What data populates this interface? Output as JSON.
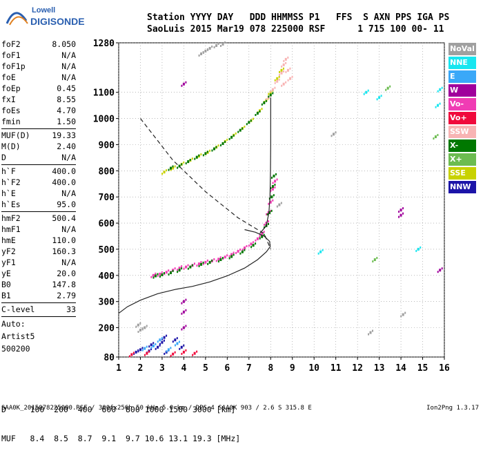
{
  "logo": {
    "line1": "Lowell",
    "line2": "DIGISONDE",
    "color": "#2a5fb0"
  },
  "header": {
    "line1": "Station YYYY DAY   DDD HHMMSS P1   FFS  S AXN PPS IGA PS",
    "line2": "SaoLuis 2015 Mar19 078 225000 RSF      1 715 100 00- 11"
  },
  "params": [
    {
      "name": "foF2",
      "value": "8.050"
    },
    {
      "name": "foF1",
      "value": "N/A"
    },
    {
      "name": "foF1p",
      "value": "N/A"
    },
    {
      "name": "foE",
      "value": "N/A"
    },
    {
      "name": "foEp",
      "value": "0.45"
    },
    {
      "name": "fxI",
      "value": "8.55"
    },
    {
      "name": "foEs",
      "value": "4.70"
    },
    {
      "name": "fmin",
      "value": "1.50"
    },
    {
      "sep": true
    },
    {
      "name": "MUF(D)",
      "value": "19.33"
    },
    {
      "name": "M(D)",
      "value": "2.40"
    },
    {
      "name": "D",
      "value": "N/A"
    },
    {
      "sep": true
    },
    {
      "name": "h`F",
      "value": "400.0"
    },
    {
      "name": "h`F2",
      "value": "400.0"
    },
    {
      "name": "h`E",
      "value": "N/A"
    },
    {
      "name": "h`Es",
      "value": "95.0"
    },
    {
      "sep": true
    },
    {
      "name": "hmF2",
      "value": "500.4"
    },
    {
      "name": "hmF1",
      "value": "N/A"
    },
    {
      "name": "hmE",
      "value": "110.0"
    },
    {
      "name": "yF2",
      "value": "160.3"
    },
    {
      "name": "yF1",
      "value": "N/A"
    },
    {
      "name": "yE",
      "value": "20.0"
    },
    {
      "name": "B0",
      "value": "147.8"
    },
    {
      "name": "B1",
      "value": "2.79"
    },
    {
      "sep": true
    },
    {
      "name": "C-level",
      "value": "33"
    },
    {
      "sep": true
    },
    {
      "text": "Auto:"
    },
    {
      "text": "Artist5"
    },
    {
      "text": "500200"
    }
  ],
  "legend": [
    {
      "label": "NoVal",
      "color": "#a0a0a0"
    },
    {
      "label": "NNE",
      "color": "#18e6f0"
    },
    {
      "label": "E",
      "color": "#3aa8f8"
    },
    {
      "label": "W",
      "color": "#a0009c"
    },
    {
      "label": "Vo-",
      "color": "#f03cb4"
    },
    {
      "label": "Vo+",
      "color": "#f00a3c"
    },
    {
      "label": "SSW",
      "color": "#f8b4b4"
    },
    {
      "label": "X-",
      "color": "#007800"
    },
    {
      "label": "X+",
      "color": "#6cbc50"
    },
    {
      "label": "SSE",
      "color": "#c8d200"
    },
    {
      "label": "NNW",
      "color": "#1c14a8"
    }
  ],
  "footer": {
    "d_row": "D     100  200  400  600  800 1000 1500 3000 [km]",
    "muf_row": "MUF   8.4  8.5  8.7  9.1  9.7 10.6 13.1 19.3 [MHz]",
    "note": "SAA0K_2015078225000.RSF / 300fx256h 50 kHz 5.0 km / DPS-4 SAA0K 903 / 2.6 S 315.8 E",
    "version": "Ion2Png 1.3.17"
  },
  "chart_data": {
    "type": "scatter",
    "x_ticks": [
      1,
      2,
      3,
      4,
      5,
      6,
      7,
      8,
      9,
      10,
      11,
      12,
      13,
      14,
      15,
      16
    ],
    "y_ticks": [
      80,
      200,
      300,
      400,
      500,
      600,
      700,
      800,
      900,
      1000,
      1100,
      1280
    ],
    "xlim": [
      1,
      16
    ],
    "ylim": [
      80,
      1280
    ],
    "grid": "dotted",
    "series": [
      {
        "color": "#f03cb4",
        "points": [
          [
            2.6,
            400
          ],
          [
            2.9,
            405
          ],
          [
            3.2,
            412
          ],
          [
            3.5,
            420
          ],
          [
            3.8,
            428
          ],
          [
            4.1,
            432
          ],
          [
            4.4,
            438
          ],
          [
            4.7,
            444
          ],
          [
            5.0,
            450
          ],
          [
            5.3,
            455
          ],
          [
            5.6,
            462
          ],
          [
            5.9,
            470
          ],
          [
            6.2,
            480
          ],
          [
            6.5,
            492
          ],
          [
            6.8,
            505
          ],
          [
            7.1,
            520
          ],
          [
            7.4,
            540
          ],
          [
            7.6,
            560
          ],
          [
            7.8,
            600
          ],
          [
            7.9,
            640
          ],
          [
            8.0,
            680
          ],
          [
            8.1,
            730
          ],
          [
            8.2,
            760
          ]
        ]
      },
      {
        "color": "#007800",
        "points": [
          [
            2.7,
            398
          ],
          [
            3.0,
            402
          ],
          [
            3.4,
            410
          ],
          [
            3.8,
            420
          ],
          [
            4.3,
            432
          ],
          [
            4.8,
            442
          ],
          [
            5.2,
            450
          ],
          [
            5.7,
            460
          ],
          [
            6.2,
            472
          ],
          [
            6.7,
            490
          ],
          [
            7.2,
            515
          ],
          [
            7.6,
            548
          ],
          [
            7.8,
            590
          ],
          [
            7.95,
            640
          ],
          [
            8.05,
            700
          ],
          [
            8.1,
            740
          ],
          [
            8.15,
            780
          ]
        ]
      },
      {
        "color": "#c8d200",
        "points": [
          [
            3.1,
            795
          ],
          [
            3.5,
            810
          ],
          [
            3.9,
            825
          ],
          [
            4.3,
            840
          ],
          [
            4.7,
            856
          ],
          [
            5.1,
            870
          ],
          [
            5.5,
            890
          ],
          [
            5.9,
            912
          ],
          [
            6.3,
            936
          ],
          [
            6.7,
            962
          ],
          [
            7.1,
            992
          ],
          [
            7.5,
            1030
          ],
          [
            7.8,
            1070
          ],
          [
            8.0,
            1100
          ],
          [
            8.3,
            1150
          ],
          [
            8.5,
            1180
          ]
        ]
      },
      {
        "color": "#f8b4b4",
        "points": [
          [
            7.9,
            1080
          ],
          [
            8.1,
            1110
          ],
          [
            8.3,
            1140
          ],
          [
            8.5,
            1170
          ],
          [
            8.6,
            1200
          ],
          [
            8.7,
            1220
          ],
          [
            8.8,
            1180
          ],
          [
            8.6,
            1130
          ],
          [
            8.9,
            1150
          ]
        ]
      },
      {
        "color": "#007800",
        "points": [
          [
            3.4,
            810
          ],
          [
            3.8,
            818
          ],
          [
            4.2,
            835
          ],
          [
            4.6,
            852
          ],
          [
            5.0,
            866
          ],
          [
            5.4,
            884
          ],
          [
            5.8,
            904
          ],
          [
            6.2,
            928
          ],
          [
            6.6,
            955
          ],
          [
            7.0,
            985
          ],
          [
            7.4,
            1020
          ],
          [
            7.7,
            1060
          ],
          [
            8.0,
            1090
          ]
        ]
      },
      {
        "color": "#a0a0a0",
        "points": [
          [
            4.8,
            1240
          ],
          [
            5.0,
            1250
          ],
          [
            5.2,
            1260
          ],
          [
            5.5,
            1270
          ],
          [
            5.8,
            1275
          ]
        ]
      },
      {
        "color": "#1c14a8",
        "points": [
          [
            1.8,
            100
          ],
          [
            2.0,
            110
          ],
          [
            2.4,
            105
          ],
          [
            2.8,
            120
          ],
          [
            3.0,
            140
          ],
          [
            3.2,
            100
          ],
          [
            3.6,
            150
          ],
          [
            3.9,
            120
          ],
          [
            3.1,
            160
          ],
          [
            2.5,
            130
          ]
        ]
      },
      {
        "color": "#3aa8f8",
        "points": [
          [
            2.2,
            115
          ],
          [
            2.6,
            125
          ],
          [
            3.3,
            110
          ],
          [
            3.7,
            135
          ],
          [
            2.9,
            150
          ]
        ]
      },
      {
        "color": "#f00a3c",
        "points": [
          [
            1.6,
            90
          ],
          [
            2.3,
            95
          ],
          [
            3.5,
            92
          ],
          [
            4.0,
            100
          ],
          [
            4.5,
            95
          ]
        ]
      },
      {
        "color": "#a0009c",
        "points": [
          [
            4.0,
            200
          ],
          [
            4.0,
            260
          ],
          [
            4.0,
            300
          ],
          [
            4.0,
            1130
          ],
          [
            14.0,
            650
          ],
          [
            14.0,
            630
          ],
          [
            15.8,
            420
          ]
        ]
      },
      {
        "color": "#18e6f0",
        "points": [
          [
            10.3,
            490
          ],
          [
            12.4,
            1100
          ],
          [
            13.0,
            1080
          ],
          [
            14.8,
            500
          ],
          [
            15.7,
            1050
          ],
          [
            15.8,
            1110
          ]
        ]
      },
      {
        "color": "#6cbc50",
        "points": [
          [
            13.4,
            1115
          ],
          [
            12.8,
            460
          ],
          [
            15.6,
            930
          ]
        ]
      },
      {
        "color": "#a0a0a0",
        "points": [
          [
            1.9,
            210
          ],
          [
            2.0,
            190
          ],
          [
            2.2,
            200
          ],
          [
            8.4,
            670
          ],
          [
            10.9,
            940
          ],
          [
            12.6,
            180
          ],
          [
            14.1,
            250
          ]
        ]
      }
    ],
    "lines": [
      {
        "style": "solid",
        "points": [
          [
            1,
            255
          ],
          [
            1.4,
            280
          ],
          [
            2.0,
            305
          ],
          [
            2.8,
            330
          ],
          [
            3.6,
            346
          ],
          [
            4.4,
            358
          ],
          [
            5.2,
            375
          ],
          [
            6.0,
            398
          ],
          [
            6.8,
            428
          ],
          [
            7.4,
            460
          ],
          [
            7.8,
            490
          ],
          [
            7.98,
            510
          ],
          [
            7.95,
            530
          ],
          [
            7.7,
            550
          ],
          [
            7.3,
            565
          ],
          [
            6.8,
            575
          ]
        ]
      },
      {
        "style": "solid",
        "points": [
          [
            7.5,
            560
          ],
          [
            7.8,
            590
          ],
          [
            7.92,
            640
          ],
          [
            7.97,
            700
          ],
          [
            7.99,
            800
          ],
          [
            8.0,
            900
          ],
          [
            8.0,
            1000
          ],
          [
            8.0,
            1080
          ]
        ]
      },
      {
        "style": "dashed",
        "points": [
          [
            2.0,
            1000
          ],
          [
            3.5,
            840
          ],
          [
            5.0,
            720
          ],
          [
            6.5,
            620
          ],
          [
            7.7,
            560
          ],
          [
            8.0,
            500
          ]
        ]
      }
    ]
  }
}
